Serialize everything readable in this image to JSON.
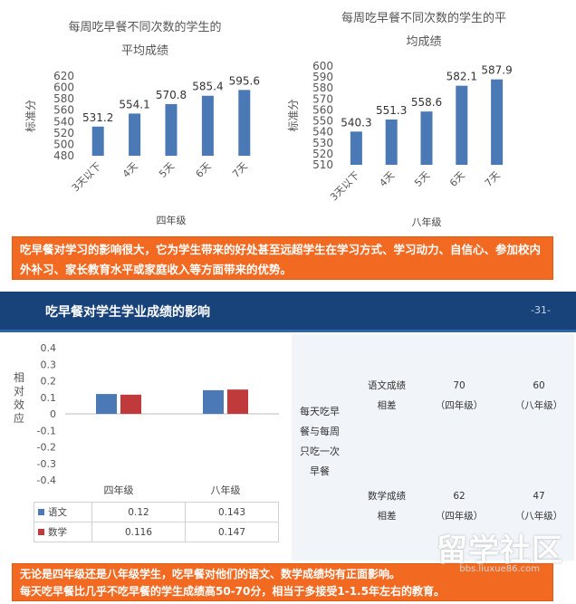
{
  "chart_data": [
    {
      "type": "bar",
      "title": "每周吃早餐不同次数的学生的平均成绩",
      "title_lines": [
        "每周吃早餐不同次数的学生的",
        "平均成绩"
      ],
      "xlabel": "四年级",
      "ylabel": "标准分",
      "categories": [
        "3天以下",
        "4天",
        "5天",
        "6天",
        "7天"
      ],
      "values": [
        531.2,
        554.1,
        570.8,
        585.4,
        595.6
      ],
      "ylim": [
        480,
        620
      ],
      "yticks": [
        480,
        500,
        520,
        540,
        560,
        580,
        600,
        620
      ],
      "grid": false,
      "color": "#4a79b5"
    },
    {
      "type": "bar",
      "title": "每周吃早餐不同次数的学生的平均成绩",
      "title_lines": [
        "每周吃早餐不同次数的学生的平",
        "均成绩"
      ],
      "xlabel": "八年级",
      "ylabel": "标准分",
      "categories": [
        "3天以下",
        "4天",
        "5天",
        "6天",
        "7天"
      ],
      "values": [
        540.3,
        551.3,
        558.6,
        582.1,
        587.9
      ],
      "ylim": [
        510,
        600
      ],
      "yticks": [
        510,
        520,
        530,
        540,
        550,
        560,
        570,
        580,
        590,
        600
      ],
      "grid": false,
      "color": "#4a79b5"
    },
    {
      "type": "bar",
      "title": "",
      "ylabel": "相对效应",
      "categories": [
        "四年级",
        "八年级"
      ],
      "series": [
        {
          "name": "语文",
          "values": [
            0.12,
            0.143
          ],
          "color": "#4a79b5"
        },
        {
          "name": "数学",
          "values": [
            0.116,
            0.147
          ],
          "color": "#c0393b"
        }
      ],
      "ylim": [
        -0.4,
        0.4
      ],
      "yticks": [
        -0.4,
        -0.3,
        -0.2,
        -0.1,
        0,
        0.1,
        0.2,
        0.3,
        0.4
      ],
      "grid": false,
      "legend": "table-below"
    }
  ],
  "table": {
    "rows": [
      {
        "label": "语文",
        "values": [
          "0.12",
          "0.143"
        ],
        "color": "#4a79b5"
      },
      {
        "label": "数学",
        "values": [
          "0.116",
          "0.147"
        ],
        "color": "#c0393b"
      }
    ]
  },
  "note_top": "吃早餐对学习的影响很大，它为学生带来的好处甚至远超学生在学习方式、学习动力、自信心、参加校内外补习、家长教育水平或家庭收入等方面带来的优势。",
  "section": {
    "title": "吃早餐对学生学业成绩的影响",
    "page": "-31-"
  },
  "comparison": {
    "main_lines": [
      "每天吃早",
      "餐与每周",
      "只吃一次",
      "早餐"
    ],
    "chinese": {
      "label_lines": [
        "语文成绩",
        "相差"
      ],
      "g4": "70",
      "g4_label": "（四年级）",
      "g8": "60",
      "g8_label": "（八年级）"
    },
    "math": {
      "label_lines": [
        "数学成绩",
        "相差"
      ],
      "g4": "62",
      "g4_label": "（四年级）",
      "g8": "47",
      "g8_label": "（八年级）"
    }
  },
  "note_bottom_lines": [
    "无论是四年级还是八年级学生，吃早餐对他们的语文、数学成绩均有正面影响。",
    "每天吃早餐比几乎不吃早餐的学生成绩高50-70分，相当于多接受1-1.5年左右的教育。"
  ],
  "watermark": {
    "text": "留学社区",
    "url": "bbs.liuxue86.com"
  }
}
